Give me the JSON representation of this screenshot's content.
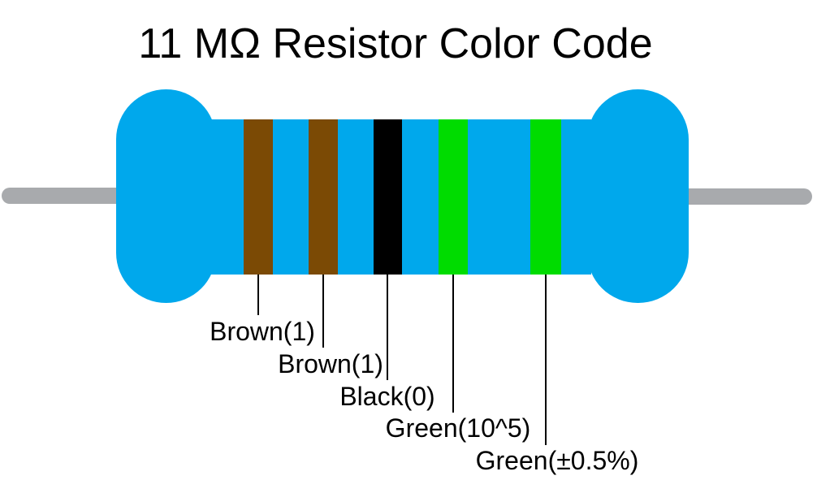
{
  "title": "11 MΩ Resistor Color Code",
  "colors": {
    "body_blue": "#00A8EC",
    "lead_gray": "#A8AAAD",
    "leader_line_black": "#000000",
    "text_black": "#000000",
    "background_white": "#FFFFFF"
  },
  "bands": [
    {
      "role": "digit-1",
      "color_name": "Brown",
      "color": "#7B4A05",
      "label": "Brown(1)"
    },
    {
      "role": "digit-2",
      "color_name": "Brown",
      "color": "#7B4A05",
      "label": "Brown(1)"
    },
    {
      "role": "digit-3",
      "color_name": "Black",
      "color": "#000000",
      "label": "Black(0)"
    },
    {
      "role": "multiplier",
      "color_name": "Green",
      "color": "#00DC00",
      "label": "Green(10^5)"
    },
    {
      "role": "tolerance",
      "color_name": "Green",
      "color": "#00DC00",
      "label": "Green(±0.5%)"
    }
  ]
}
